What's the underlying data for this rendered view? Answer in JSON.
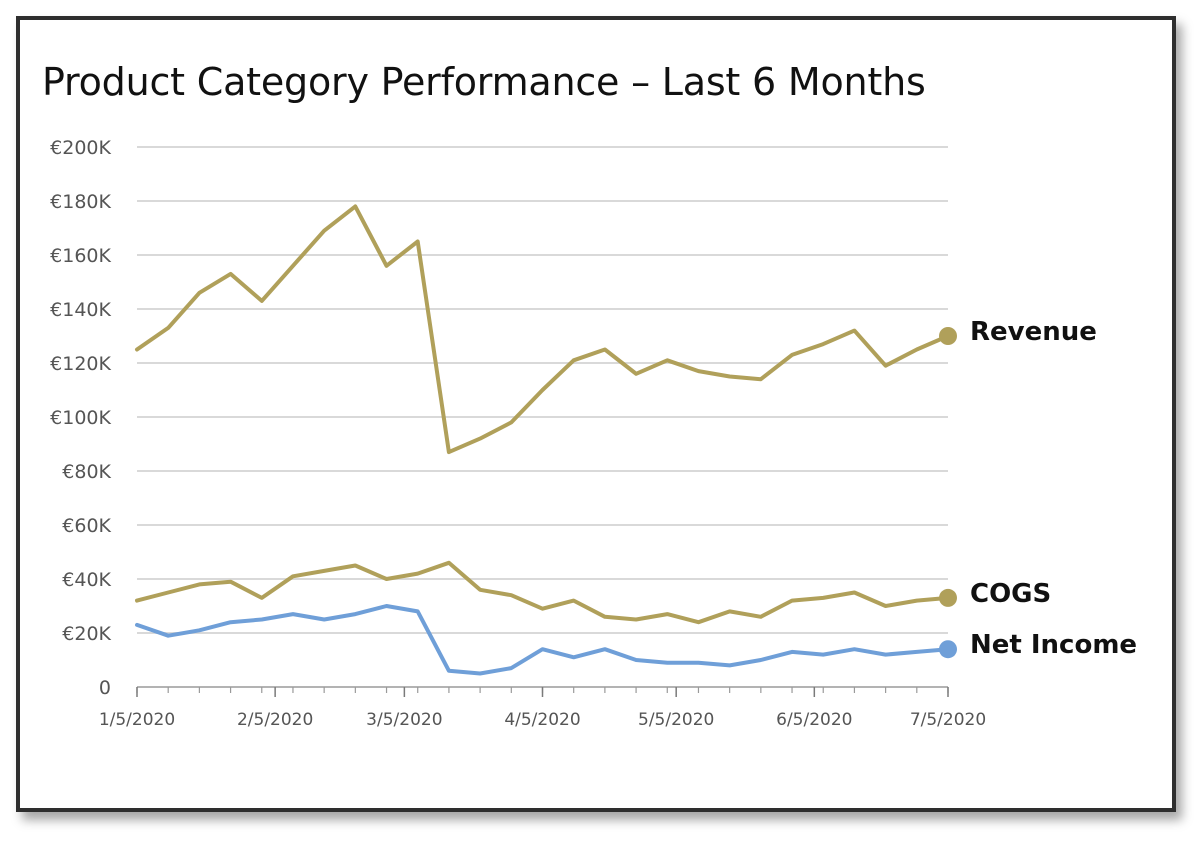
{
  "chart_data": {
    "type": "line",
    "title": "Product Category Performance – Last 6 Months",
    "xlabel": "",
    "ylabel": "",
    "y_tick_labels": [
      "0",
      "€20K",
      "€40K",
      "€60K",
      "€80K",
      "€100K",
      "€120K",
      "€140K",
      "€160K",
      "€180K",
      "€200K"
    ],
    "y_ticks": [
      0,
      20000,
      40000,
      60000,
      80000,
      100000,
      120000,
      140000,
      160000,
      180000,
      200000
    ],
    "ylim": [
      0,
      200000
    ],
    "x_tick_labels": [
      "1/5/2020",
      "2/5/2020",
      "3/5/2020",
      "4/5/2020",
      "5/5/2020",
      "6/5/2020",
      "7/5/2020"
    ],
    "xlim": [
      "2020-01-05",
      "2020-07-05"
    ],
    "grid": true,
    "legend": "end-of-line labels",
    "x": [
      "2020-01-05",
      "2020-01-12",
      "2020-01-19",
      "2020-01-26",
      "2020-02-02",
      "2020-02-09",
      "2020-02-16",
      "2020-02-23",
      "2020-03-01",
      "2020-03-08",
      "2020-03-15",
      "2020-03-22",
      "2020-03-29",
      "2020-04-05",
      "2020-04-12",
      "2020-04-19",
      "2020-04-26",
      "2020-05-03",
      "2020-05-10",
      "2020-05-17",
      "2020-05-24",
      "2020-05-31",
      "2020-06-07",
      "2020-06-14",
      "2020-06-21",
      "2020-06-28",
      "2020-07-05"
    ],
    "series": [
      {
        "name": "Revenue",
        "color": "#b0a05a",
        "values": [
          125000,
          133000,
          146000,
          153000,
          143000,
          156000,
          169000,
          178000,
          156000,
          165000,
          87000,
          92000,
          98000,
          110000,
          121000,
          125000,
          116000,
          121000,
          117000,
          115000,
          114000,
          123000,
          127000,
          132000,
          119000,
          125000,
          130000
        ]
      },
      {
        "name": "COGS",
        "color": "#b0a05a",
        "values": [
          32000,
          35000,
          38000,
          39000,
          33000,
          41000,
          43000,
          45000,
          40000,
          42000,
          46000,
          36000,
          34000,
          29000,
          32000,
          26000,
          25000,
          27000,
          24000,
          28000,
          26000,
          32000,
          33000,
          35000,
          30000,
          32000,
          33000
        ]
      },
      {
        "name": "Net Income",
        "color": "#6f9fd8",
        "values": [
          23000,
          19000,
          21000,
          24000,
          25000,
          27000,
          25000,
          27000,
          30000,
          28000,
          6000,
          5000,
          7000,
          14000,
          11000,
          14000,
          10000,
          9000,
          9000,
          8000,
          10000,
          13000,
          12000,
          14000,
          12000,
          13000,
          14000
        ]
      }
    ]
  }
}
